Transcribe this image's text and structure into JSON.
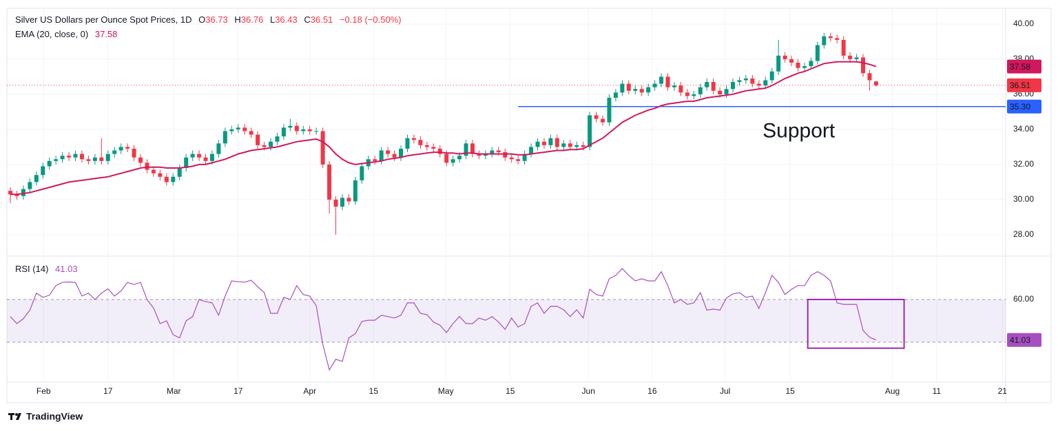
{
  "chart_data": {
    "type": "candlestick",
    "title": "Silver US Dollars per Ounce Spot Prices, 1D",
    "ohlc_labels": [
      "O",
      "H",
      "L",
      "C"
    ],
    "change": {
      "value": -0.18,
      "label": "−0.18"
    },
    "change_pct": {
      "value": -0.5,
      "label": "(−0.50%)"
    },
    "up_color": "#089981",
    "down_color": "#f23645",
    "grid": true,
    "xlim": [
      -0.53,
      152.9
    ],
    "xticks": [
      {
        "value": 5.1,
        "label": "Feb"
      },
      {
        "value": 15.0,
        "label": "17"
      },
      {
        "value": 25.1,
        "label": "Mar"
      },
      {
        "value": 35.0,
        "label": "17"
      },
      {
        "value": 46.0,
        "label": "Apr"
      },
      {
        "value": 55.8,
        "label": "15"
      },
      {
        "value": 66.9,
        "label": "May"
      },
      {
        "value": 76.8,
        "label": "15"
      },
      {
        "value": 88.8,
        "label": "Jun"
      },
      {
        "value": 98.6,
        "label": "16"
      },
      {
        "value": 109.8,
        "label": "Jul"
      },
      {
        "value": 119.8,
        "label": "15"
      },
      {
        "value": 135.5,
        "label": "Aug"
      },
      {
        "value": 142.3,
        "label": "11"
      },
      {
        "value": 152.4,
        "label": "21"
      }
    ],
    "ylim": [
      26.78,
      40.9
    ],
    "yticks": [
      {
        "value": 28,
        "label": "28.00"
      },
      {
        "value": 30,
        "label": "30.00"
      },
      {
        "value": 32,
        "label": "32.00"
      },
      {
        "value": 34,
        "label": "34.00"
      },
      {
        "value": 36,
        "label": "36.00"
      },
      {
        "value": 38,
        "label": "38.00"
      },
      {
        "value": 40,
        "label": "40.00"
      }
    ],
    "x": [
      0,
      1,
      2,
      3,
      4,
      5,
      6,
      7,
      8,
      9,
      10,
      11,
      12,
      13,
      14,
      15,
      16,
      17,
      18,
      19,
      20,
      21,
      22,
      23,
      24,
      25,
      26,
      27,
      28,
      29,
      30,
      31,
      32,
      33,
      34,
      35,
      36,
      37,
      38,
      39,
      40,
      41,
      42,
      43,
      44,
      45,
      46,
      47,
      48,
      49,
      50,
      51,
      52,
      53,
      54,
      55,
      56,
      57,
      58,
      59,
      60,
      61,
      62,
      63,
      64,
      65,
      66,
      67,
      68,
      69,
      70,
      71,
      72,
      73,
      74,
      75,
      76,
      77,
      78,
      79,
      80,
      81,
      82,
      83,
      84,
      85,
      86,
      87,
      88,
      89,
      90,
      91,
      92,
      93,
      94,
      95,
      96,
      97,
      98,
      99,
      100,
      101,
      102,
      103,
      104,
      105,
      106,
      107,
      108,
      109,
      110,
      111,
      112,
      113,
      114,
      115,
      116,
      117,
      118,
      119,
      120,
      121,
      122,
      123,
      124,
      125,
      126,
      127,
      128,
      129,
      130,
      131,
      132,
      133
    ],
    "open": [
      30.5,
      30.3,
      30.2,
      30.6,
      31.0,
      31.4,
      31.9,
      32.2,
      32.3,
      32.5,
      32.4,
      32.6,
      32.3,
      32.2,
      32.4,
      32.2,
      32.6,
      32.8,
      33.0,
      32.9,
      32.4,
      32.1,
      31.7,
      31.5,
      31.3,
      31.0,
      31.3,
      31.8,
      32.4,
      32.6,
      32.4,
      32.2,
      32.6,
      33.2,
      33.9,
      34.0,
      34.1,
      33.9,
      33.7,
      33.1,
      33.0,
      33.3,
      33.6,
      34.1,
      34.2,
      33.9,
      34.0,
      33.9,
      33.9,
      32.0,
      30.0,
      29.6,
      30.1,
      29.9,
      31.1,
      31.9,
      32.3,
      32.2,
      32.8,
      32.6,
      32.4,
      32.9,
      33.5,
      33.4,
      33.1,
      33.0,
      32.9,
      32.6,
      32.1,
      32.3,
      32.5,
      33.2,
      32.6,
      32.5,
      32.6,
      32.8,
      32.7,
      32.4,
      32.3,
      32.2,
      32.6,
      33.0,
      33.3,
      33.1,
      33.5,
      33.0,
      33.2,
      33.0,
      33.1,
      33.0,
      34.8,
      34.6,
      34.4,
      35.8,
      36.1,
      36.6,
      36.2,
      36.3,
      36.1,
      36.4,
      36.6,
      37.0,
      36.4,
      36.5,
      36.1,
      35.9,
      36.0,
      36.4,
      36.7,
      36.2,
      36.0,
      36.3,
      36.7,
      36.8,
      36.9,
      36.6,
      36.5,
      36.8,
      37.3,
      38.2,
      38.0,
      37.8,
      37.5,
      37.6,
      37.9,
      38.8,
      39.3,
      39.2,
      39.1,
      38.2,
      38.0,
      38.1,
      37.2,
      36.73
    ],
    "high": [
      30.7,
      30.5,
      30.8,
      31.2,
      31.6,
      32.1,
      32.4,
      32.5,
      32.7,
      32.7,
      32.8,
      32.8,
      32.5,
      32.6,
      33.5,
      32.8,
      33.0,
      33.2,
      33.2,
      33.1,
      32.6,
      32.3,
      31.9,
      31.7,
      31.5,
      31.5,
      32.0,
      32.6,
      32.8,
      32.8,
      32.6,
      32.8,
      33.4,
      34.1,
      34.2,
      34.3,
      34.3,
      34.1,
      33.9,
      33.3,
      33.5,
      33.8,
      34.3,
      34.6,
      34.4,
      34.2,
      34.2,
      34.1,
      34.1,
      32.2,
      30.2,
      30.3,
      30.3,
      31.3,
      32.1,
      32.5,
      32.5,
      33.0,
      33.0,
      32.8,
      33.1,
      33.7,
      33.7,
      33.6,
      33.3,
      33.2,
      33.1,
      32.8,
      32.5,
      32.7,
      33.4,
      33.4,
      32.8,
      32.8,
      33.0,
      33.0,
      32.9,
      32.6,
      32.5,
      32.8,
      33.2,
      33.5,
      33.5,
      33.7,
      33.7,
      33.4,
      33.4,
      33.3,
      33.3,
      35.0,
      35.0,
      34.8,
      36.0,
      36.3,
      36.8,
      36.8,
      36.5,
      36.5,
      36.6,
      36.8,
      37.2,
      37.2,
      36.7,
      36.7,
      36.3,
      36.2,
      36.6,
      36.9,
      36.9,
      36.4,
      36.5,
      36.9,
      37.0,
      37.1,
      37.1,
      36.8,
      37.0,
      37.5,
      39.1,
      38.4,
      38.2,
      38.0,
      37.8,
      38.1,
      39.0,
      39.5,
      39.5,
      39.4,
      39.3,
      38.4,
      38.3,
      38.3,
      37.4,
      36.76
    ],
    "low": [
      29.8,
      30.0,
      30.0,
      30.4,
      30.8,
      31.2,
      31.7,
      32.0,
      32.1,
      32.2,
      32.2,
      32.1,
      32.0,
      32.0,
      32.0,
      32.0,
      32.4,
      32.6,
      32.7,
      32.2,
      31.9,
      31.5,
      31.3,
      31.1,
      30.8,
      30.8,
      31.1,
      31.6,
      32.2,
      32.2,
      32.0,
      32.0,
      32.4,
      33.0,
      33.7,
      33.8,
      33.7,
      33.5,
      32.9,
      32.8,
      32.8,
      33.1,
      33.4,
      33.9,
      33.7,
      33.7,
      33.7,
      33.7,
      31.8,
      29.2,
      28.0,
      29.4,
      29.7,
      29.7,
      30.9,
      31.7,
      32.0,
      32.0,
      32.4,
      32.2,
      32.2,
      32.7,
      33.2,
      32.9,
      32.8,
      32.7,
      32.4,
      31.9,
      31.9,
      32.1,
      32.3,
      32.4,
      32.3,
      32.3,
      32.4,
      32.5,
      32.2,
      32.1,
      32.0,
      32.0,
      32.4,
      32.8,
      32.9,
      32.9,
      32.8,
      32.8,
      32.8,
      32.8,
      32.8,
      32.8,
      34.4,
      34.2,
      34.2,
      35.6,
      35.9,
      36.0,
      36.0,
      35.9,
      35.9,
      36.2,
      36.4,
      36.2,
      36.2,
      35.9,
      35.7,
      35.7,
      35.8,
      36.2,
      36.0,
      35.8,
      35.8,
      36.1,
      36.5,
      36.6,
      36.4,
      36.3,
      36.3,
      36.6,
      37.1,
      37.8,
      37.6,
      37.3,
      37.3,
      37.4,
      37.7,
      38.6,
      39.0,
      38.9,
      38.0,
      37.8,
      37.8,
      37.0,
      36.2,
      36.43
    ],
    "close": [
      30.3,
      30.2,
      30.6,
      31.0,
      31.4,
      31.9,
      32.2,
      32.3,
      32.5,
      32.4,
      32.6,
      32.3,
      32.2,
      32.4,
      32.2,
      32.6,
      32.8,
      33.0,
      32.9,
      32.4,
      32.1,
      31.7,
      31.5,
      31.3,
      31.0,
      31.3,
      31.8,
      32.4,
      32.6,
      32.4,
      32.2,
      32.6,
      33.2,
      33.9,
      34.0,
      34.1,
      33.9,
      33.7,
      33.1,
      33.0,
      33.3,
      33.6,
      34.1,
      34.2,
      33.9,
      34.0,
      33.9,
      33.9,
      32.0,
      30.0,
      29.6,
      30.1,
      29.9,
      31.1,
      31.9,
      32.3,
      32.2,
      32.8,
      32.6,
      32.4,
      32.9,
      33.5,
      33.4,
      33.1,
      33.0,
      32.9,
      32.6,
      32.1,
      32.3,
      32.5,
      33.2,
      32.6,
      32.5,
      32.6,
      32.8,
      32.7,
      32.4,
      32.3,
      32.2,
      32.6,
      33.0,
      33.3,
      33.1,
      33.5,
      33.0,
      33.2,
      33.0,
      33.1,
      33.0,
      34.8,
      34.6,
      34.4,
      35.8,
      36.1,
      36.6,
      36.2,
      36.3,
      36.1,
      36.4,
      36.6,
      37.0,
      36.4,
      36.5,
      36.1,
      35.9,
      36.0,
      36.4,
      36.7,
      36.2,
      36.0,
      36.3,
      36.7,
      36.8,
      36.9,
      36.6,
      36.5,
      36.8,
      37.3,
      38.2,
      38.0,
      37.8,
      37.5,
      37.6,
      37.9,
      38.8,
      39.3,
      39.2,
      39.1,
      38.2,
      38.0,
      38.1,
      37.2,
      36.8,
      36.51
    ],
    "ema": {
      "name": "EMA (20, close, 0)",
      "color": "#d1175e",
      "values": [
        30.3,
        30.3,
        30.35,
        30.4,
        30.5,
        30.6,
        30.7,
        30.8,
        30.9,
        31.0,
        31.05,
        31.1,
        31.15,
        31.2,
        31.25,
        31.3,
        31.4,
        31.5,
        31.6,
        31.7,
        31.8,
        31.85,
        31.85,
        31.85,
        31.8,
        31.8,
        31.8,
        31.85,
        31.9,
        32.0,
        32.0,
        32.1,
        32.2,
        32.3,
        32.45,
        32.6,
        32.7,
        32.8,
        32.85,
        32.9,
        32.95,
        33.0,
        33.1,
        33.2,
        33.3,
        33.35,
        33.4,
        33.45,
        33.3,
        33.0,
        32.6,
        32.3,
        32.1,
        32.0,
        32.05,
        32.1,
        32.15,
        32.2,
        32.3,
        32.35,
        32.4,
        32.5,
        32.55,
        32.6,
        32.65,
        32.7,
        32.7,
        32.65,
        32.65,
        32.6,
        32.65,
        32.65,
        32.6,
        32.6,
        32.6,
        32.6,
        32.6,
        32.6,
        32.55,
        32.55,
        32.6,
        32.65,
        32.7,
        32.75,
        32.8,
        32.8,
        32.85,
        32.85,
        32.9,
        33.1,
        33.3,
        33.5,
        33.8,
        34.1,
        34.4,
        34.6,
        34.8,
        34.95,
        35.1,
        35.2,
        35.35,
        35.45,
        35.5,
        35.55,
        35.6,
        35.6,
        35.7,
        35.8,
        35.85,
        35.9,
        35.95,
        36.0,
        36.1,
        36.2,
        36.25,
        36.3,
        36.35,
        36.5,
        36.7,
        36.9,
        37.05,
        37.2,
        37.3,
        37.45,
        37.6,
        37.75,
        37.8,
        37.85,
        37.85,
        37.85,
        37.85,
        37.8,
        37.7,
        37.58
      ]
    },
    "support": {
      "text": "Support",
      "value": 35.3,
      "label": "35.30",
      "from_x": 78,
      "color": "#2962ff"
    },
    "rsi": {
      "name": "RSI (14)",
      "color": "#a64fc0",
      "ylim": [
        21.3,
        80.3
      ],
      "yticks": [
        {
          "value": 60,
          "label": "60.00"
        }
      ],
      "bands": [
        40,
        60
      ],
      "band_color": "rgba(126,87,194,0.1)",
      "box": {
        "x": [
          122.5,
          137.3
        ],
        "y": [
          60,
          37.2
        ],
        "color": "#9c27b0"
      },
      "values": [
        52,
        48.7,
        51,
        55,
        63,
        61,
        62,
        66.5,
        68,
        68.2,
        68,
        61.6,
        63,
        60,
        63,
        65,
        61.6,
        64,
        68,
        67,
        68,
        60,
        56,
        48.7,
        50,
        43.5,
        42,
        50,
        52,
        60,
        59,
        58.4,
        52.6,
        61.6,
        68.7,
        68.3,
        68.1,
        69,
        66,
        63.2,
        53.5,
        53.5,
        61,
        60,
        66.5,
        62.3,
        61.6,
        57,
        39,
        27,
        32,
        31,
        42,
        44,
        49.7,
        50.3,
        50.3,
        52.6,
        52,
        51.3,
        52.6,
        58.4,
        58.4,
        53.5,
        52.9,
        49.4,
        48,
        44.5,
        48.7,
        52,
        48.7,
        48.7,
        51.3,
        50.3,
        52,
        49.4,
        46,
        51.3,
        47.1,
        48.7,
        56.8,
        58.4,
        53.5,
        56.8,
        56.8,
        55.2,
        52,
        55.2,
        51.3,
        64.8,
        62.3,
        61.6,
        69.7,
        71.3,
        74.5,
        71.3,
        68.7,
        69.7,
        68.7,
        68.7,
        73,
        66.5,
        58.4,
        60,
        57.7,
        58.4,
        63.2,
        55,
        55.5,
        55,
        60.6,
        62.6,
        63.2,
        61,
        61.6,
        55.8,
        63.2,
        71.3,
        68,
        62.3,
        64.8,
        66.5,
        66.5,
        71.3,
        73,
        71.3,
        68.7,
        58.4,
        57.7,
        57.7,
        57.7,
        45.5,
        42.3,
        41.03
      ]
    }
  },
  "footer": {
    "brand": "TradingView"
  }
}
